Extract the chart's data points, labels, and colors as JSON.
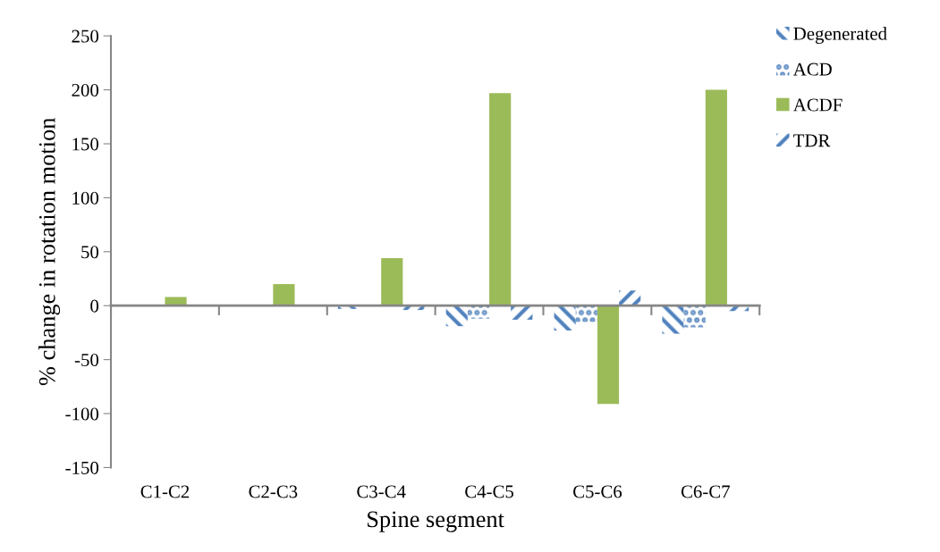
{
  "chart_data": {
    "type": "bar",
    "xlabel": "Spine segment",
    "ylabel": "% change in rotation motion",
    "categories": [
      "C1-C2",
      "C2-C3",
      "C3-C4",
      "C4-C5",
      "C5-C6",
      "C6-C7"
    ],
    "series": [
      {
        "name": "Degenerated",
        "color": "#4f81bd",
        "values": [
          0,
          null,
          -3,
          -19,
          -23,
          -26
        ]
      },
      {
        "name": "ACD",
        "color": "#4f81bd",
        "values": [
          0,
          null,
          null,
          -12,
          -15,
          -20
        ]
      },
      {
        "name": "ACDF",
        "color": "#9bbb59",
        "values": [
          8,
          20,
          44,
          197,
          -91,
          200
        ]
      },
      {
        "name": "TDR",
        "color": "#4f81bd",
        "values": [
          0,
          null,
          -4,
          -13,
          14,
          -5
        ]
      }
    ],
    "ylim": [
      -150,
      250
    ],
    "yticks": [
      -150,
      -100,
      -50,
      0,
      50,
      100,
      150,
      200,
      250
    ],
    "legend": "top right"
  }
}
